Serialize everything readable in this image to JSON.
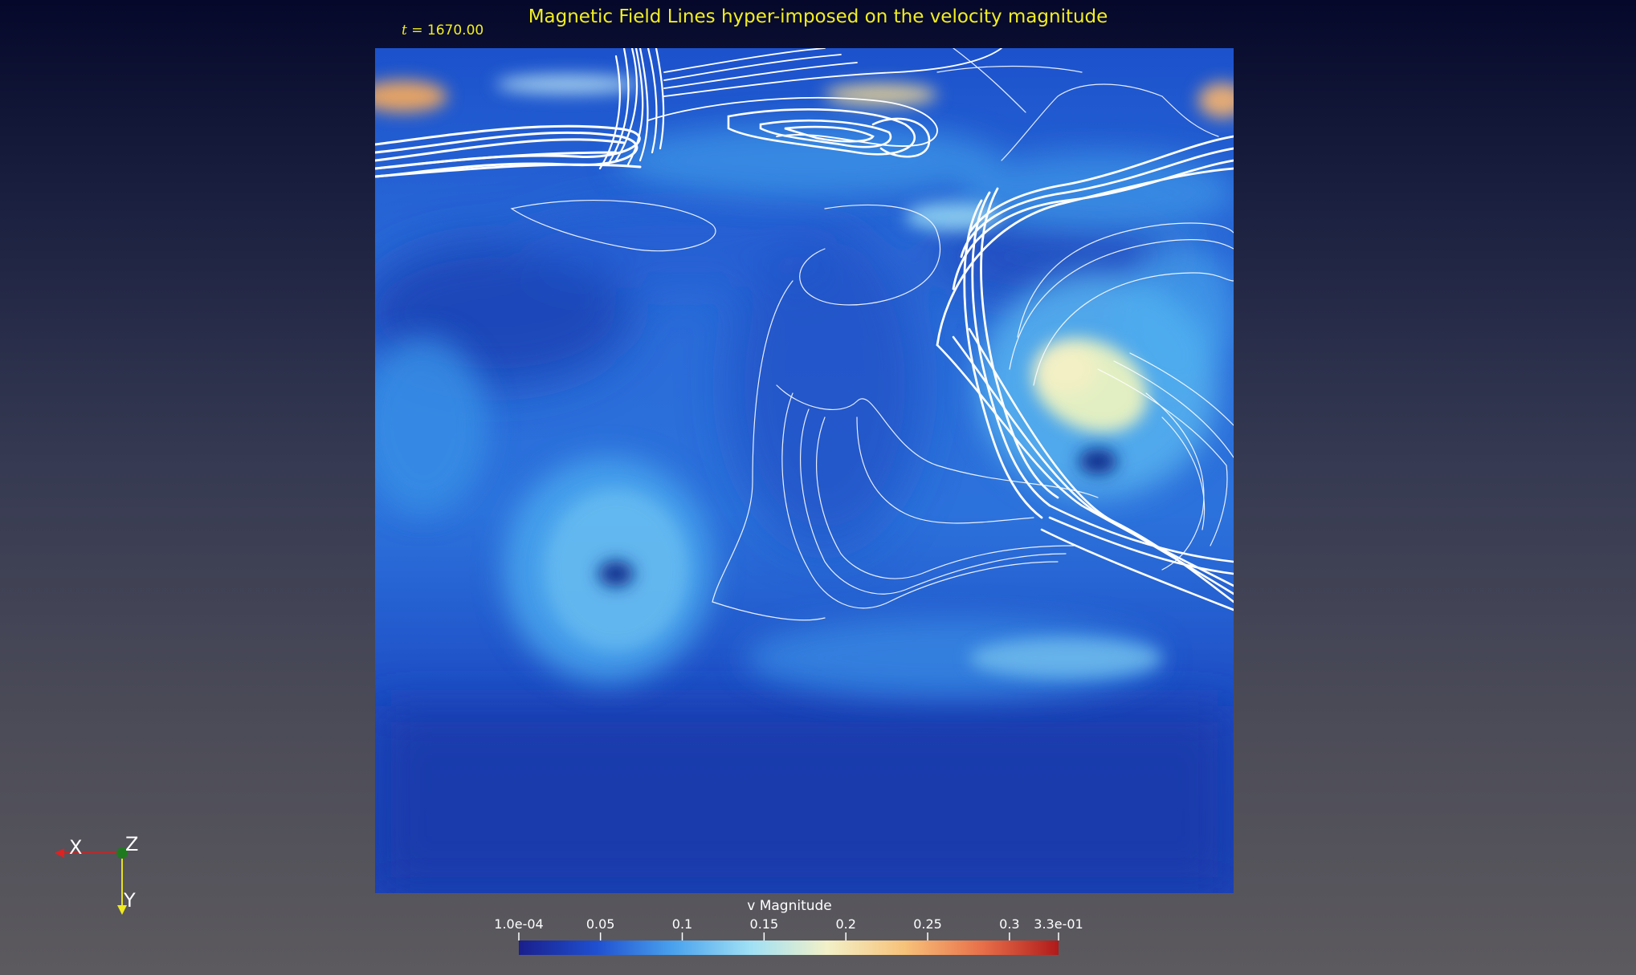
{
  "title": "Magnetic Field Lines hyper-imposed on the velocity magnitude",
  "time": {
    "symbol": "t",
    "value": "= 1670.00"
  },
  "axes": {
    "x": "X",
    "y": "Y",
    "z": "Z"
  },
  "colorbar": {
    "title": "v Magnitude",
    "min": 0.0001,
    "max": 0.33,
    "ticks": [
      {
        "label": "1.0e-04",
        "value": 0.0001
      },
      {
        "label": "0.05",
        "value": 0.05
      },
      {
        "label": "0.1",
        "value": 0.1
      },
      {
        "label": "0.15",
        "value": 0.15
      },
      {
        "label": "0.2",
        "value": 0.2
      },
      {
        "label": "0.25",
        "value": 0.25
      },
      {
        "label": "0.3",
        "value": 0.3
      },
      {
        "label": "3.3e-01",
        "value": 0.33
      }
    ],
    "colors": [
      "#1a1f8c",
      "#1f4fd0",
      "#4aa2ee",
      "#9fe0f5",
      "#f2f0c8",
      "#f7c27a",
      "#e8704a",
      "#b01a1a"
    ]
  },
  "colors": {
    "annotation": "#f2ee20",
    "field_lines": "#ffffff"
  }
}
